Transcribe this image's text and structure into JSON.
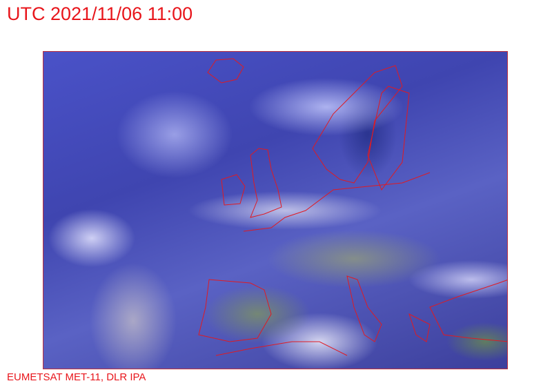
{
  "header": {
    "title": "UTC 2021/11/06 11:00"
  },
  "image": {
    "description_icon": "satellite-image-europe",
    "coastline_color": "#e8151b"
  },
  "footer": {
    "credit": "EUMETSAT MET-11, DLR IPA"
  },
  "colors": {
    "text": "#e8151b"
  }
}
